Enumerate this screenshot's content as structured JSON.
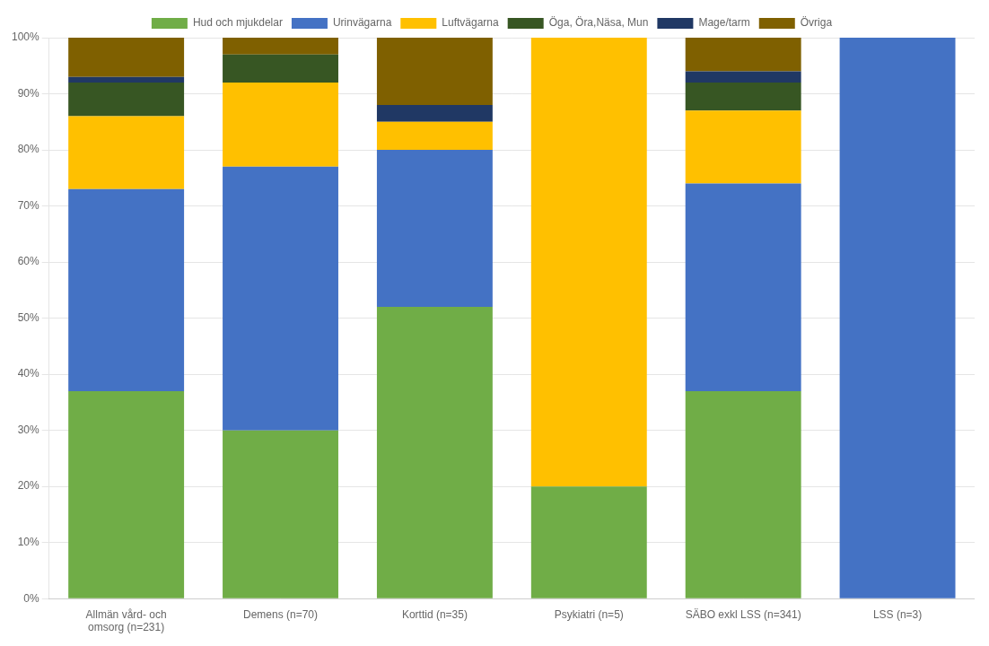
{
  "chart_data": {
    "type": "bar",
    "stacked": true,
    "categories": [
      "Allmän vård- och\nomsorg (n=231)",
      "Demens (n=70)",
      "Korttid (n=35)",
      "Psykiatri (n=5)",
      "SÄBO exkl LSS (n=341)",
      "LSS (n=3)"
    ],
    "series": [
      {
        "name": "Hud och mjukdelar",
        "color": "#70AD47",
        "values": [
          0.37,
          0.3,
          0.52,
          0.2,
          0.37,
          0.0
        ]
      },
      {
        "name": "Urinvägarna",
        "color": "#4472C4",
        "values": [
          0.36,
          0.47,
          0.28,
          0.0,
          0.37,
          1.0
        ]
      },
      {
        "name": "Luftvägarna",
        "color": "#FFC000",
        "values": [
          0.13,
          0.15,
          0.05,
          0.8,
          0.13,
          0.0
        ]
      },
      {
        "name": "Öga, Öra,Näsa, Mun",
        "color": "#375623",
        "values": [
          0.06,
          0.05,
          0.0,
          0.0,
          0.05,
          0.0
        ]
      },
      {
        "name": "Mage/tarm",
        "color": "#203864",
        "values": [
          0.01,
          0.0,
          0.03,
          0.0,
          0.02,
          0.0
        ]
      },
      {
        "name": "Övriga",
        "color": "#7F6000",
        "values": [
          0.07,
          0.03,
          0.12,
          0.0,
          0.06,
          0.0
        ]
      }
    ],
    "ylim": [
      0,
      1.0
    ],
    "yticks": [
      {
        "value": 0,
        "label": "0%"
      },
      {
        "value": 0.1,
        "label": "10%"
      },
      {
        "value": 0.2,
        "label": "20%"
      },
      {
        "value": 0.3,
        "label": "30%"
      },
      {
        "value": 0.4,
        "label": "40%"
      },
      {
        "value": 0.5,
        "label": "50%"
      },
      {
        "value": 0.6,
        "label": "60%"
      },
      {
        "value": 0.7,
        "label": "70%"
      },
      {
        "value": 0.8,
        "label": "80%"
      },
      {
        "value": 0.9,
        "label": "90%"
      },
      {
        "value": 1.0,
        "label": "100%"
      }
    ],
    "grid": true,
    "legend": "top"
  }
}
